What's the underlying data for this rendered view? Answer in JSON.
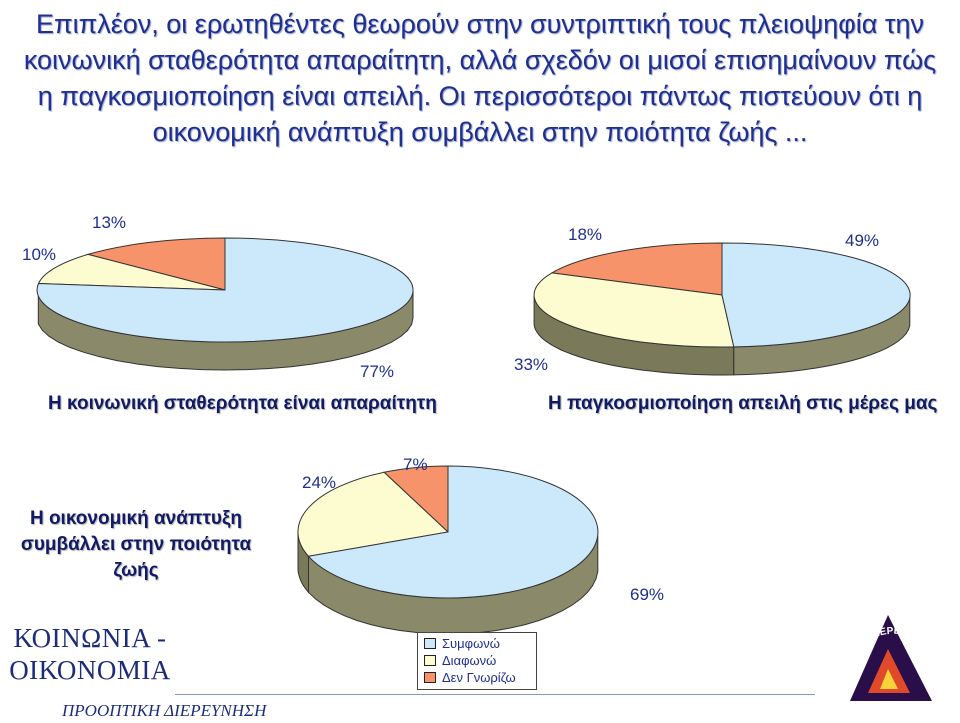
{
  "headline": "Επιπλέον, οι ερωτηθέντες θεωρούν στην συντριπτική τους πλειοψηφία την κοινωνική σταθερότητα απαραίτητη, αλλά σχεδόν οι μισοί επισημαίνουν πώς η παγκοσμιοποίηση είναι απειλή. Οι περισσότεροι πάντως πιστεύουν ότι η οικονομική ανάπτυξη συμβάλλει στην ποιότητα ζωής ...",
  "legend": [
    {
      "label": "Συμφωνώ",
      "color": "#cce8fb"
    },
    {
      "label": "Διαφωνώ",
      "color": "#fdfbd0"
    },
    {
      "label": "Δεν Γνωρίζω",
      "color": "#f7936a"
    }
  ],
  "chart_data": [
    {
      "type": "pie",
      "title": "Η κοινωνική σταθερότητα είναι απαραίτητη",
      "categories": [
        "Συμφωνώ",
        "Διαφωνώ",
        "Δεν Γνωρίζω"
      ],
      "values": [
        77,
        10,
        13
      ],
      "labels": [
        "77%",
        "10%",
        "13%"
      ]
    },
    {
      "type": "pie",
      "title": "Η παγκοσμιοποίηση απειλή στις μέρες μας",
      "categories": [
        "Συμφωνώ",
        "Διαφωνώ",
        "Δεν Γνωρίζω"
      ],
      "values": [
        49,
        33,
        18
      ],
      "labels": [
        "49%",
        "33%",
        "18%"
      ]
    },
    {
      "type": "pie",
      "title": "Η οικονομική ανάπτυξη συμβάλλει στην ποιότητα ζωής",
      "categories": [
        "Συμφωνώ",
        "Διαφωνώ",
        "Δεν Γνωρίζω"
      ],
      "values": [
        69,
        24,
        7
      ],
      "labels": [
        "69%",
        "24%",
        "7%"
      ]
    }
  ],
  "brand": {
    "title_line1": "ΚΟΙΝΩΝΙΑ -",
    "title_line2": "ΟΙΚΟΝΟΜΙΑ",
    "footer": "ΠΡΟΟΠΤΙΚΗ ΔΙΕΡΕΥΝΗΣΗ",
    "logo_text": "ΠΡΟΟΠΤΙΚΗ ΔΙΕΡΕΥΝΗΣΗ"
  }
}
